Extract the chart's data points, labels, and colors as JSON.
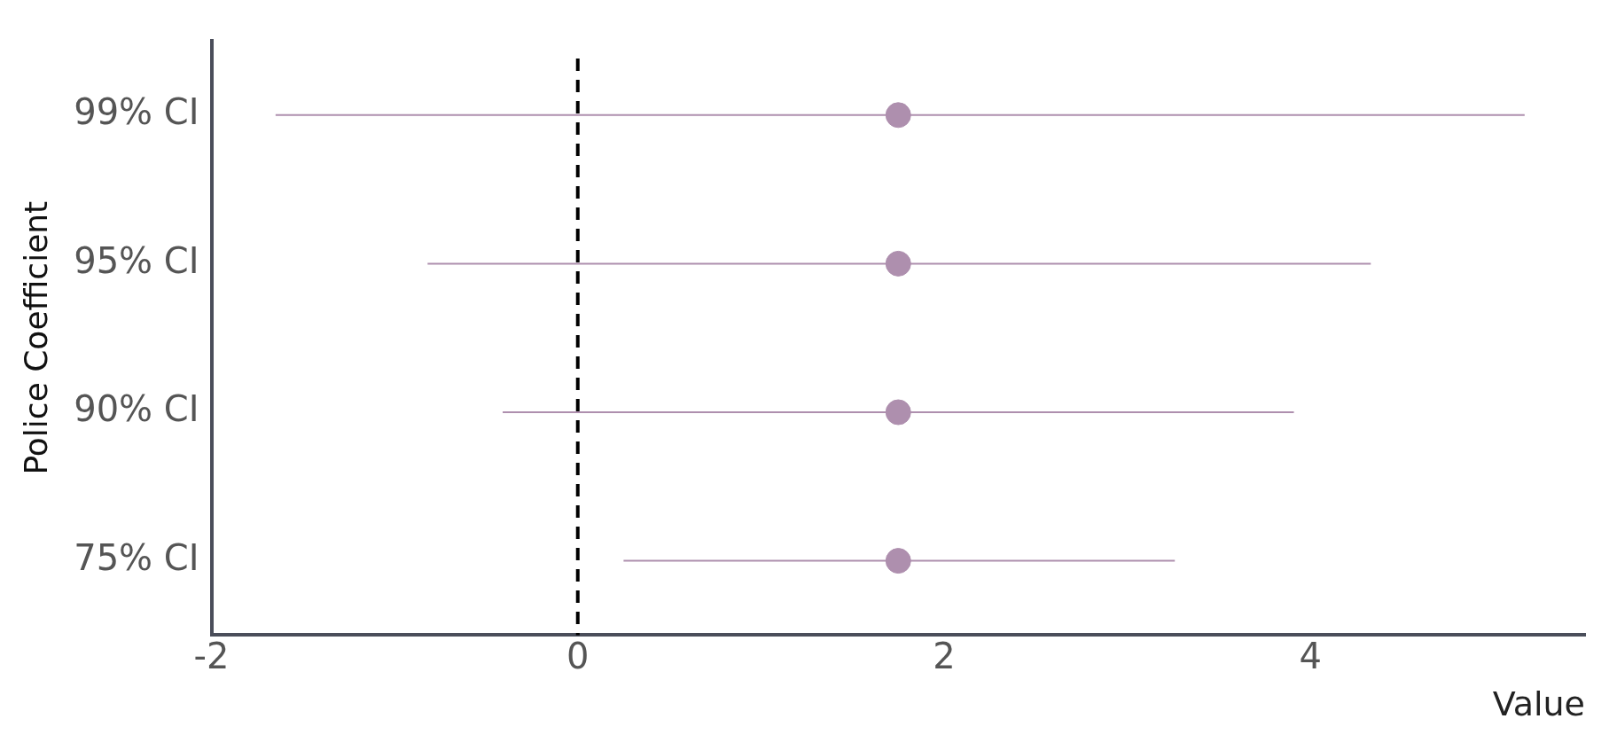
{
  "chart_data": {
    "type": "scatter",
    "orientation": "horizontal",
    "xlabel": "Value",
    "ylabel": "Police Coefficient",
    "categories": [
      "99% CI",
      "95% CI",
      "90% CI",
      "75% CI"
    ],
    "values": [
      1.75,
      1.75,
      1.75,
      1.75
    ],
    "errors": [
      [
        -1.65,
        5.17
      ],
      [
        -0.82,
        4.33
      ],
      [
        -0.41,
        3.91
      ],
      [
        0.25,
        3.26
      ]
    ],
    "color": "#ae8fae",
    "xlim": [
      -2,
      5.5
    ],
    "xticks": [
      -2,
      0,
      2,
      4
    ],
    "ref_lines": [
      {
        "axis": "x",
        "value": 0,
        "color": "#000000",
        "line_style": "dashed"
      }
    ],
    "grid": false,
    "legend": false,
    "marker": "circle"
  }
}
